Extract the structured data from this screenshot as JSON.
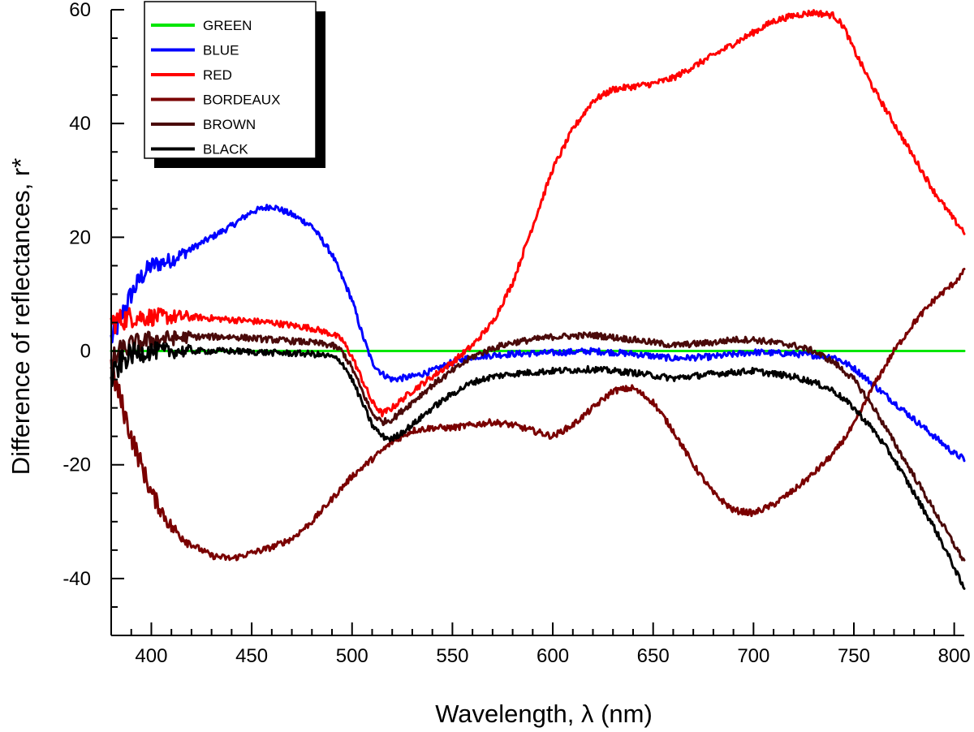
{
  "chart_data": {
    "type": "line",
    "title": "",
    "xlabel": "Wavelength, λ (nm)",
    "ylabel": "Difference of reflectances, r*",
    "xlim": [
      380,
      805
    ],
    "ylim": [
      -50,
      60
    ],
    "x_ticks": [
      400,
      450,
      500,
      550,
      600,
      650,
      700,
      750,
      800
    ],
    "y_ticks": [
      -40,
      -20,
      0,
      20,
      40,
      60
    ],
    "x_tick_labels": [
      "400",
      "450",
      "500",
      "550",
      "600",
      "650",
      "700",
      "750",
      "800"
    ],
    "y_tick_labels": [
      "-40",
      "-20",
      "0",
      "20",
      "40",
      "60"
    ],
    "grid": false,
    "legend_position": "top-left",
    "series": [
      {
        "name": "GREEN",
        "color": "#00e600",
        "points": [
          [
            380,
            0
          ],
          [
            805,
            0
          ]
        ]
      },
      {
        "name": "BLUE",
        "color": "#0000ff",
        "points": [
          [
            380,
            2
          ],
          [
            385,
            6
          ],
          [
            390,
            10
          ],
          [
            395,
            13
          ],
          [
            400,
            15
          ],
          [
            410,
            16
          ],
          [
            420,
            18
          ],
          [
            430,
            20
          ],
          [
            440,
            22
          ],
          [
            450,
            24.5
          ],
          [
            460,
            25.5
          ],
          [
            470,
            24
          ],
          [
            480,
            22
          ],
          [
            490,
            17
          ],
          [
            500,
            9
          ],
          [
            505,
            3
          ],
          [
            510,
            -2
          ],
          [
            515,
            -4
          ],
          [
            520,
            -5
          ],
          [
            530,
            -4.5
          ],
          [
            540,
            -3.5
          ],
          [
            550,
            -2
          ],
          [
            560,
            -1
          ],
          [
            580,
            -0.5
          ],
          [
            600,
            -0.3
          ],
          [
            620,
            0
          ],
          [
            640,
            -0.5
          ],
          [
            660,
            -1.3
          ],
          [
            680,
            -1
          ],
          [
            700,
            -0.2
          ],
          [
            720,
            -0.5
          ],
          [
            740,
            -1
          ],
          [
            750,
            -3
          ],
          [
            760,
            -6
          ],
          [
            770,
            -9
          ],
          [
            780,
            -12
          ],
          [
            790,
            -15
          ],
          [
            800,
            -18
          ],
          [
            805,
            -19
          ]
        ]
      },
      {
        "name": "RED",
        "color": "#ff0000",
        "points": [
          [
            380,
            5
          ],
          [
            390,
            6
          ],
          [
            400,
            6
          ],
          [
            410,
            6
          ],
          [
            420,
            6
          ],
          [
            440,
            5.5
          ],
          [
            460,
            5
          ],
          [
            480,
            4
          ],
          [
            490,
            3
          ],
          [
            495,
            2
          ],
          [
            500,
            -1
          ],
          [
            505,
            -5
          ],
          [
            510,
            -9
          ],
          [
            515,
            -11
          ],
          [
            520,
            -10
          ],
          [
            530,
            -7
          ],
          [
            540,
            -4.5
          ],
          [
            550,
            -2
          ],
          [
            560,
            1
          ],
          [
            570,
            5
          ],
          [
            580,
            12
          ],
          [
            590,
            22
          ],
          [
            600,
            32
          ],
          [
            610,
            39
          ],
          [
            620,
            44
          ],
          [
            630,
            46
          ],
          [
            640,
            46.5
          ],
          [
            650,
            47
          ],
          [
            660,
            48
          ],
          [
            670,
            50
          ],
          [
            680,
            52
          ],
          [
            690,
            54
          ],
          [
            700,
            56
          ],
          [
            710,
            58
          ],
          [
            720,
            59
          ],
          [
            730,
            59.5
          ],
          [
            740,
            59
          ],
          [
            745,
            57
          ],
          [
            750,
            53
          ],
          [
            760,
            46
          ],
          [
            770,
            40
          ],
          [
            780,
            34
          ],
          [
            790,
            28
          ],
          [
            800,
            23
          ],
          [
            805,
            21
          ]
        ]
      },
      {
        "name": "BORDEAUX",
        "color": "#7a0000",
        "points": [
          [
            380,
            -3
          ],
          [
            385,
            -9
          ],
          [
            390,
            -15
          ],
          [
            400,
            -25
          ],
          [
            410,
            -31
          ],
          [
            420,
            -34
          ],
          [
            430,
            -36
          ],
          [
            440,
            -36.5
          ],
          [
            450,
            -35.5
          ],
          [
            460,
            -34.5
          ],
          [
            470,
            -33
          ],
          [
            480,
            -30
          ],
          [
            490,
            -26
          ],
          [
            500,
            -22
          ],
          [
            510,
            -19
          ],
          [
            520,
            -16
          ],
          [
            530,
            -14
          ],
          [
            540,
            -13.5
          ],
          [
            550,
            -13.5
          ],
          [
            560,
            -13
          ],
          [
            570,
            -12.5
          ],
          [
            580,
            -13
          ],
          [
            590,
            -14
          ],
          [
            600,
            -15
          ],
          [
            610,
            -13
          ],
          [
            620,
            -10
          ],
          [
            630,
            -7
          ],
          [
            640,
            -6.5
          ],
          [
            650,
            -9
          ],
          [
            660,
            -14
          ],
          [
            670,
            -20
          ],
          [
            680,
            -25
          ],
          [
            690,
            -28
          ],
          [
            700,
            -28.5
          ],
          [
            710,
            -27
          ],
          [
            720,
            -24.5
          ],
          [
            730,
            -21.5
          ],
          [
            740,
            -18
          ],
          [
            750,
            -13
          ],
          [
            760,
            -6
          ],
          [
            770,
            0
          ],
          [
            780,
            5
          ],
          [
            790,
            9
          ],
          [
            800,
            12
          ],
          [
            805,
            14
          ]
        ]
      },
      {
        "name": "BROWN",
        "color": "#4a0a0a",
        "points": [
          [
            380,
            -2
          ],
          [
            385,
            0
          ],
          [
            390,
            1
          ],
          [
            400,
            2
          ],
          [
            420,
            2.5
          ],
          [
            440,
            2.5
          ],
          [
            460,
            2
          ],
          [
            480,
            1.5
          ],
          [
            490,
            1
          ],
          [
            495,
            0
          ],
          [
            500,
            -3
          ],
          [
            505,
            -7
          ],
          [
            510,
            -11
          ],
          [
            515,
            -12.5
          ],
          [
            520,
            -12
          ],
          [
            530,
            -9
          ],
          [
            540,
            -6
          ],
          [
            550,
            -3.5
          ],
          [
            560,
            -1
          ],
          [
            570,
            0.5
          ],
          [
            580,
            1.5
          ],
          [
            590,
            2
          ],
          [
            600,
            2.5
          ],
          [
            620,
            2.8
          ],
          [
            640,
            2
          ],
          [
            660,
            1
          ],
          [
            680,
            1.5
          ],
          [
            690,
            2
          ],
          [
            700,
            2
          ],
          [
            710,
            1.5
          ],
          [
            720,
            1
          ],
          [
            730,
            0
          ],
          [
            740,
            -2
          ],
          [
            750,
            -5
          ],
          [
            760,
            -10
          ],
          [
            770,
            -16
          ],
          [
            780,
            -22
          ],
          [
            790,
            -28
          ],
          [
            800,
            -34
          ],
          [
            805,
            -37
          ]
        ]
      },
      {
        "name": "BLACK",
        "color": "#000000",
        "points": [
          [
            380,
            -5
          ],
          [
            385,
            -2
          ],
          [
            390,
            -0.5
          ],
          [
            400,
            0
          ],
          [
            420,
            0
          ],
          [
            440,
            0
          ],
          [
            460,
            -0.3
          ],
          [
            480,
            -0.5
          ],
          [
            490,
            -1
          ],
          [
            495,
            -2
          ],
          [
            500,
            -5
          ],
          [
            505,
            -9
          ],
          [
            510,
            -13
          ],
          [
            515,
            -15
          ],
          [
            520,
            -15.5
          ],
          [
            530,
            -13
          ],
          [
            540,
            -10
          ],
          [
            550,
            -7.5
          ],
          [
            560,
            -5.5
          ],
          [
            570,
            -4.5
          ],
          [
            580,
            -4
          ],
          [
            600,
            -3.5
          ],
          [
            620,
            -3.2
          ],
          [
            640,
            -3.8
          ],
          [
            660,
            -4.8
          ],
          [
            680,
            -4
          ],
          [
            700,
            -3.5
          ],
          [
            710,
            -4
          ],
          [
            720,
            -4.5
          ],
          [
            730,
            -5.5
          ],
          [
            740,
            -7
          ],
          [
            750,
            -10
          ],
          [
            760,
            -14
          ],
          [
            770,
            -19
          ],
          [
            780,
            -25
          ],
          [
            790,
            -31
          ],
          [
            800,
            -38
          ],
          [
            805,
            -42
          ]
        ]
      }
    ]
  }
}
